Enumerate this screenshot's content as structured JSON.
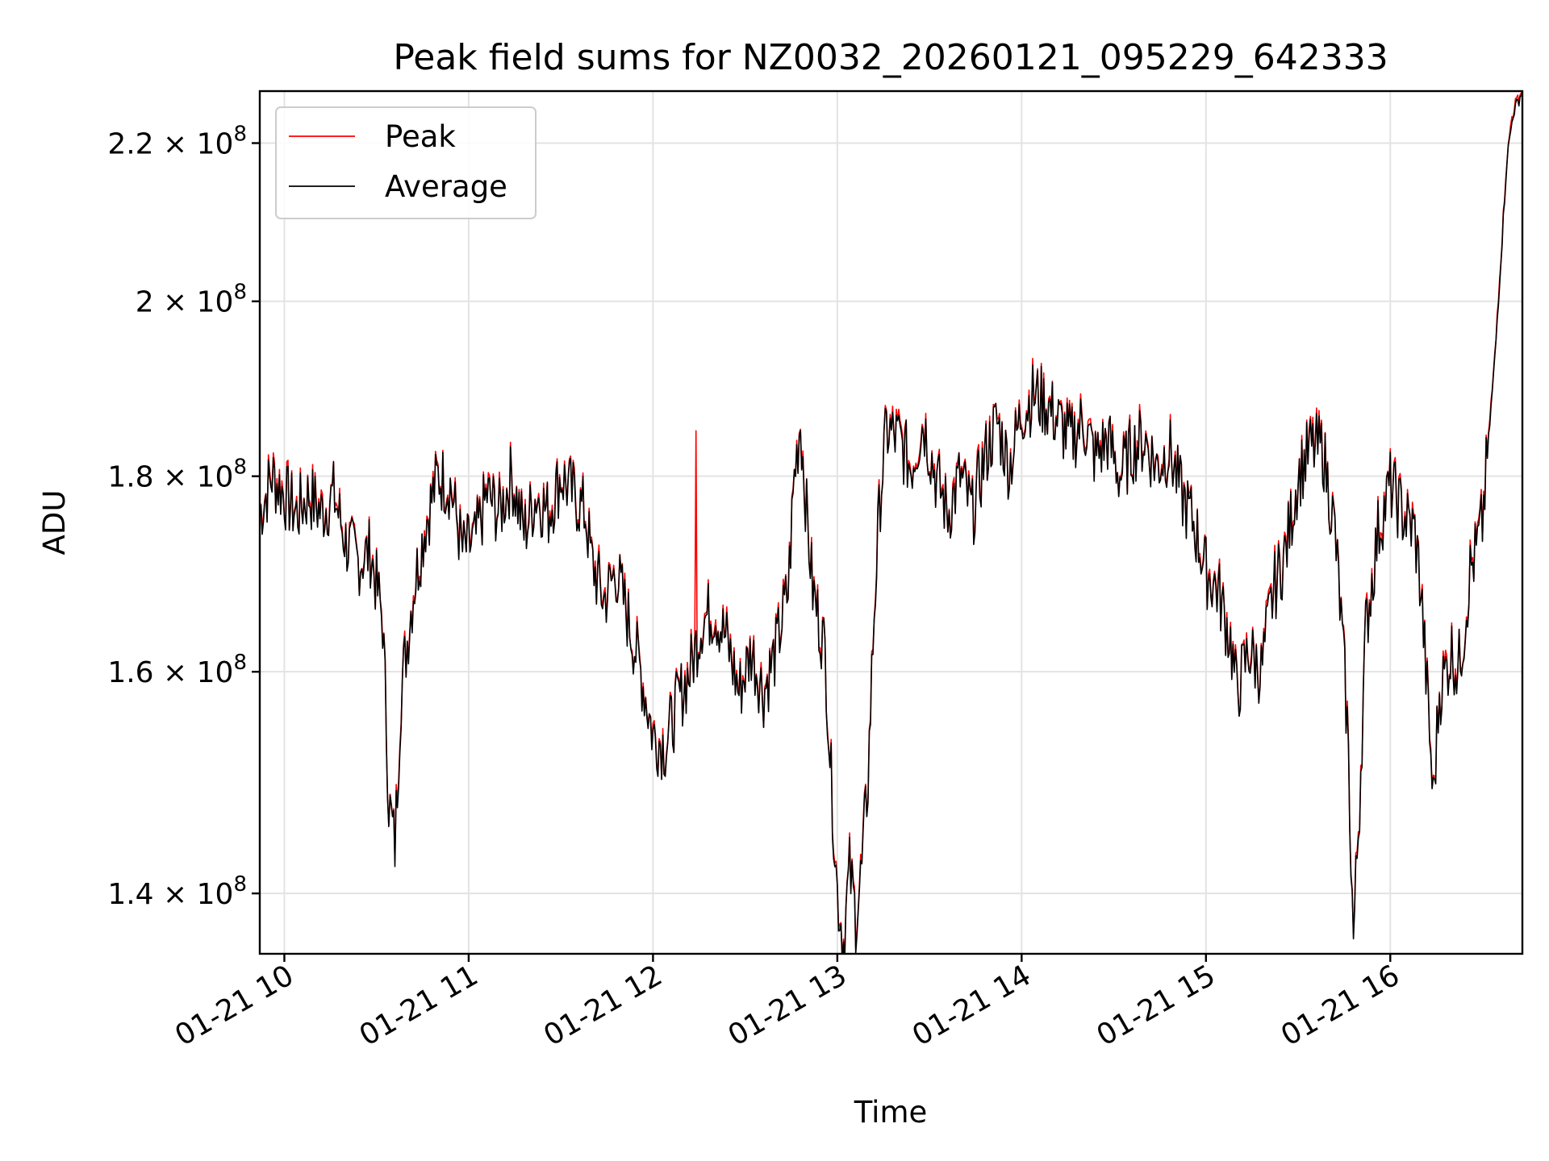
{
  "chart_data": {
    "type": "line",
    "title": "Peak field sums for NZ0032_20260121_095229_642333",
    "xlabel": "Time",
    "ylabel": "ADU",
    "x_range": [
      "01-21 09:52",
      "01-21 16:43"
    ],
    "y_range": [
      135000000,
      227000000
    ],
    "y_scale": "log",
    "x_ticks": [
      "01-21 10",
      "01-21 11",
      "01-21 12",
      "01-21 13",
      "01-21 14",
      "01-21 15",
      "01-21 16"
    ],
    "y_ticks": [
      {
        "value": 140000000,
        "mantissa": "1.4",
        "exp": "8"
      },
      {
        "value": 160000000,
        "mantissa": "1.6",
        "exp": "8"
      },
      {
        "value": 180000000,
        "mantissa": "1.8",
        "exp": "8"
      },
      {
        "value": 200000000,
        "mantissa": "2",
        "exp": "8"
      },
      {
        "value": 220000000,
        "mantissa": "2.2",
        "exp": "8"
      }
    ],
    "grid": true,
    "legend_position": "top-left",
    "series": [
      {
        "name": "Peak",
        "color": "#ff0000"
      },
      {
        "name": "Average",
        "color": "#000000"
      }
    ],
    "points": [
      [
        "01-21 09:52",
        176
      ],
      [
        "01-21 09:56",
        180
      ],
      [
        "01-21 10:00",
        178
      ],
      [
        "01-21 10:04",
        176
      ],
      [
        "01-21 10:08",
        178
      ],
      [
        "01-21 10:12",
        176
      ],
      [
        "01-21 10:16",
        178
      ],
      [
        "01-21 10:20",
        173
      ],
      [
        "01-21 10:24",
        171
      ],
      [
        "01-21 10:28",
        172
      ],
      [
        "01-21 10:32",
        165
      ],
      [
        "01-21 10:34",
        148
      ],
      [
        "01-21 10:36",
        144
      ],
      [
        "01-21 10:38",
        158
      ],
      [
        "01-21 10:42",
        168
      ],
      [
        "01-21 10:46",
        175
      ],
      [
        "01-21 10:50",
        180
      ],
      [
        "01-21 10:54",
        179
      ],
      [
        "01-21 10:58",
        172
      ],
      [
        "01-21 11:02",
        173
      ],
      [
        "01-21 11:06",
        178
      ],
      [
        "01-21 11:10",
        176
      ],
      [
        "01-21 11:14",
        180
      ],
      [
        "01-21 11:18",
        174
      ],
      [
        "01-21 11:22",
        178
      ],
      [
        "01-21 11:26",
        176
      ],
      [
        "01-21 11:30",
        180
      ],
      [
        "01-21 11:34",
        178
      ],
      [
        "01-21 11:38",
        176
      ],
      [
        "01-21 11:40",
        171
      ],
      [
        "01-21 11:44",
        167
      ],
      [
        "01-21 11:48",
        170
      ],
      [
        "01-21 11:52",
        165
      ],
      [
        "01-21 11:56",
        160
      ],
      [
        "01-21 12:00",
        154
      ],
      [
        "01-21 12:04",
        153
      ],
      [
        "01-21 12:08",
        157
      ],
      [
        "01-21 12:12",
        160
      ],
      [
        "01-21 12:16",
        165
      ],
      [
        "01-21 12:20",
        166
      ],
      [
        "01-21 12:24",
        163
      ],
      [
        "01-21 12:28",
        158
      ],
      [
        "01-21 12:32",
        162
      ],
      [
        "01-21 12:36",
        158
      ],
      [
        "01-21 12:40",
        162
      ],
      [
        "01-21 12:44",
        168
      ],
      [
        "01-21 12:46",
        180
      ],
      [
        "01-21 12:48",
        186
      ],
      [
        "01-21 12:50",
        176
      ],
      [
        "01-21 12:52",
        168
      ],
      [
        "01-21 12:56",
        162
      ],
      [
        "01-21 12:58",
        150
      ],
      [
        "01-21 13:00",
        140
      ],
      [
        "01-21 13:02",
        136
      ],
      [
        "01-21 13:04",
        142
      ],
      [
        "01-21 13:06",
        138
      ],
      [
        "01-21 13:08",
        142
      ],
      [
        "01-21 13:10",
        150
      ],
      [
        "01-21 13:12",
        166
      ],
      [
        "01-21 13:14",
        178
      ],
      [
        "01-21 13:16",
        185
      ],
      [
        "01-21 13:20",
        184
      ],
      [
        "01-21 13:24",
        181
      ],
      [
        "01-21 13:28",
        186
      ],
      [
        "01-21 13:32",
        180
      ],
      [
        "01-21 13:36",
        176
      ],
      [
        "01-21 13:40",
        180
      ],
      [
        "01-21 13:44",
        176
      ],
      [
        "01-21 13:48",
        182
      ],
      [
        "01-21 13:52",
        186
      ],
      [
        "01-21 13:56",
        181
      ],
      [
        "01-21 14:00",
        187
      ],
      [
        "01-21 14:04",
        189
      ],
      [
        "01-21 14:08",
        188
      ],
      [
        "01-21 14:12",
        186
      ],
      [
        "01-21 14:16",
        184
      ],
      [
        "01-21 14:20",
        186
      ],
      [
        "01-21 14:24",
        182
      ],
      [
        "01-21 14:28",
        184
      ],
      [
        "01-21 14:32",
        180
      ],
      [
        "01-21 14:36",
        183
      ],
      [
        "01-21 14:40",
        184
      ],
      [
        "01-21 14:44",
        181
      ],
      [
        "01-21 14:48",
        183
      ],
      [
        "01-21 14:52",
        178
      ],
      [
        "01-21 14:56",
        175
      ],
      [
        "01-21 15:00",
        170
      ],
      [
        "01-21 15:04",
        168
      ],
      [
        "01-21 15:08",
        163
      ],
      [
        "01-21 15:10",
        158
      ],
      [
        "01-21 15:14",
        162
      ],
      [
        "01-21 15:18",
        160
      ],
      [
        "01-21 15:22",
        168
      ],
      [
        "01-21 15:26",
        172
      ],
      [
        "01-21 15:30",
        180
      ],
      [
        "01-21 15:34",
        183
      ],
      [
        "01-21 15:38",
        183
      ],
      [
        "01-21 15:42",
        174
      ],
      [
        "01-21 15:44",
        165
      ],
      [
        "01-21 15:46",
        155
      ],
      [
        "01-21 15:48",
        136
      ],
      [
        "01-21 15:50",
        148
      ],
      [
        "01-21 15:52",
        164
      ],
      [
        "01-21 15:54",
        169
      ],
      [
        "01-21 15:56",
        174
      ],
      [
        "01-21 16:00",
        179
      ],
      [
        "01-21 16:04",
        176
      ],
      [
        "01-21 16:08",
        174
      ],
      [
        "01-21 16:10",
        168
      ],
      [
        "01-21 16:12",
        158
      ],
      [
        "01-21 16:14",
        148
      ],
      [
        "01-21 16:16",
        158
      ],
      [
        "01-21 16:18",
        160
      ],
      [
        "01-21 16:20",
        162
      ],
      [
        "01-21 16:22",
        160
      ],
      [
        "01-21 16:24",
        164
      ],
      [
        "01-21 16:26",
        170
      ],
      [
        "01-21 16:28",
        172
      ],
      [
        "01-21 16:30",
        175
      ],
      [
        "01-21 16:32",
        184
      ],
      [
        "01-21 16:34",
        193
      ],
      [
        "01-21 16:36",
        205
      ],
      [
        "01-21 16:38",
        218
      ],
      [
        "01-21 16:40",
        224
      ],
      [
        "01-21 16:43",
        227
      ]
    ],
    "peak_spike": {
      "x": "01-21 12:14",
      "y": 185
    }
  }
}
